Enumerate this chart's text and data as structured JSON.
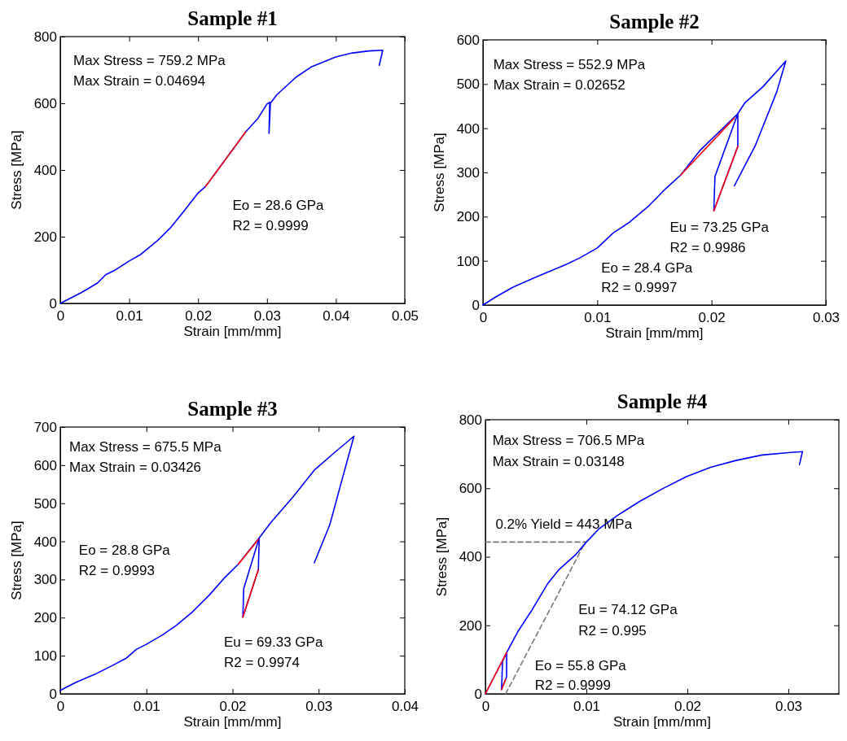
{
  "chart_data": [
    {
      "type": "line",
      "title": "Sample #1",
      "xlabel": "Strain [mm/mm]",
      "ylabel": "Stress [MPa]",
      "xlim": [
        0,
        0.05
      ],
      "ylim": [
        0,
        800
      ],
      "xticks": [
        0,
        0.01,
        0.02,
        0.03,
        0.04,
        0.05
      ],
      "yticks": [
        0,
        200,
        400,
        600,
        800
      ],
      "series": [
        {
          "color": "#0000ff",
          "x": [
            0,
            0.0015,
            0.0031,
            0.0054,
            0.0066,
            0.0078,
            0.01,
            0.0117,
            0.0141,
            0.0161,
            0.018,
            0.02,
            0.0211,
            0.0269,
            0.0287,
            0.03,
            0.0304,
            0.0303,
            0.0305,
            0.0314,
            0.0342,
            0.0365,
            0.04,
            0.0424,
            0.0448,
            0.0468,
            0.0463
          ],
          "values": [
            0,
            16,
            33,
            61,
            86,
            98,
            127,
            147,
            188,
            229,
            278,
            331,
            351,
            514,
            555,
            598,
            603,
            510,
            600,
            625,
            678,
            710,
            739,
            751,
            757,
            759,
            714
          ]
        },
        {
          "color": "#ff0000",
          "x": [
            0.0211,
            0.024,
            0.0269
          ],
          "values": [
            351,
            432,
            514
          ]
        }
      ],
      "annotations": [
        "Max Stress = 759.2 MPa",
        "Max Strain = 0.04694",
        "Eo = 28.6 GPa",
        "R2 = 0.9999"
      ]
    },
    {
      "type": "line",
      "title": "Sample #2",
      "xlabel": "Strain [mm/mm]",
      "ylabel": "Stress [MPa]",
      "xlim": [
        0,
        0.03
      ],
      "ylim": [
        0,
        600
      ],
      "xticks": [
        0,
        0.01,
        0.02,
        0.03
      ],
      "yticks": [
        0,
        100,
        200,
        300,
        400,
        500,
        600
      ],
      "series": [
        {
          "color": "#0000ff",
          "x": [
            0,
            0.0011,
            0.0026,
            0.0047,
            0.0073,
            0.0085,
            0.01,
            0.0114,
            0.0128,
            0.0145,
            0.0159,
            0.0173,
            0.019,
            0.0223,
            0.0203,
            0.0202,
            0.0223,
            0.0223,
            0.0229,
            0.0245,
            0.0265,
            0.0257,
            0.0238,
            0.0228,
            0.022
          ],
          "values": [
            0,
            18,
            40,
            64,
            92,
            107,
            129,
            163,
            187,
            224,
            261,
            294,
            350,
            433,
            291,
            213,
            359,
            433,
            457,
            494,
            552,
            482,
            359,
            310,
            270
          ]
        },
        {
          "color": "#ff0000",
          "x": [
            0.0173,
            0.022
          ],
          "values": [
            294,
            423
          ]
        },
        {
          "color": "#ff0000",
          "x": [
            0.0202,
            0.0223
          ],
          "values": [
            213,
            359
          ]
        }
      ],
      "annotations": [
        "Max Stress = 552.9 MPa",
        "Max Strain = 0.02652",
        "Eu = 73.25 GPa",
        "R2 = 0.9986",
        "Eo = 28.4 GPa",
        "R2 = 0.9997"
      ]
    },
    {
      "type": "line",
      "title": "Sample #3",
      "xlabel": "Strain [mm/mm]",
      "ylabel": "Stress [MPa]",
      "xlim": [
        0,
        0.04
      ],
      "ylim": [
        0,
        700
      ],
      "xticks": [
        0,
        0.01,
        0.02,
        0.03,
        0.04
      ],
      "yticks": [
        0,
        100,
        200,
        300,
        400,
        500,
        600,
        700
      ],
      "series": [
        {
          "color": "#0000ff",
          "x": [
            0,
            0.0018,
            0.004,
            0.0062,
            0.0077,
            0.0088,
            0.01,
            0.0119,
            0.0135,
            0.0154,
            0.0173,
            0.0191,
            0.0207,
            0.0231,
            0.0213,
            0.0212,
            0.023,
            0.0231,
            0.0245,
            0.027,
            0.0295,
            0.032,
            0.0341,
            0.0325,
            0.0313,
            0.0295
          ],
          "values": [
            9,
            30,
            51,
            76,
            94,
            116,
            130,
            155,
            180,
            216,
            259,
            305,
            341,
            409,
            276,
            201,
            326,
            409,
            451,
            516,
            587,
            636,
            676,
            544,
            444,
            344
          ]
        },
        {
          "color": "#ff0000",
          "x": [
            0.0207,
            0.023
          ],
          "values": [
            341,
            405
          ]
        },
        {
          "color": "#ff0000",
          "x": [
            0.0212,
            0.023
          ],
          "values": [
            201,
            326
          ]
        }
      ],
      "annotations": [
        "Max Stress = 675.5 MPa",
        "Max Strain = 0.03426",
        "Eo = 28.8 GPa",
        "R2 = 0.9993",
        "Eu = 69.33 GPa",
        "R2 = 0.9974"
      ]
    },
    {
      "type": "line",
      "title": "Sample #4",
      "xlabel": "Strain [mm/mm]",
      "ylabel": "Stress [MPa]",
      "xlim": [
        0,
        0.035
      ],
      "ylim": [
        0,
        800
      ],
      "xticks": [
        0,
        0.01,
        0.02,
        0.03
      ],
      "yticks": [
        0,
        200,
        400,
        600,
        800
      ],
      "series": [
        {
          "color": "#777777",
          "line_style": "dashed",
          "x": [
            0,
            0.0099
          ],
          "values": [
            443,
            443
          ]
        },
        {
          "color": "#777777",
          "line_style": "dashed",
          "x": [
            0.002,
            0.0099
          ],
          "values": [
            0,
            443
          ]
        },
        {
          "color": "#0000ff",
          "x": [
            0,
            0.0021,
            0.0021,
            0.0016,
            0.0017,
            0.0021,
            0.0032,
            0.0046,
            0.0062,
            0.0073,
            0.0089,
            0.01,
            0.0113,
            0.0132,
            0.0153,
            0.0175,
            0.0199,
            0.0223,
            0.0248,
            0.0274,
            0.03,
            0.0314,
            0.0311
          ],
          "values": [
            0,
            120,
            50,
            13,
            95,
            120,
            181,
            244,
            323,
            363,
            405,
            443,
            483,
            523,
            562,
            598,
            634,
            661,
            681,
            697,
            704,
            707,
            669
          ]
        },
        {
          "color": "#ff0000",
          "x": [
            0,
            0.0021
          ],
          "values": [
            0,
            120
          ]
        },
        {
          "color": "#ff0000",
          "x": [
            0.0016,
            0.002
          ],
          "values": [
            12,
            42
          ]
        }
      ],
      "annotations": [
        "Max Stress = 706.5 MPa",
        "Max Strain = 0.03148",
        {
          "text": "0.2% Yield = 443 MPa",
          "x": 0.001,
          "y": 443
        },
        "Eu = 74.12 GPa",
        "R2 = 0.995",
        "Eo = 55.8 GPa",
        "R2 = 0.9999"
      ]
    }
  ]
}
